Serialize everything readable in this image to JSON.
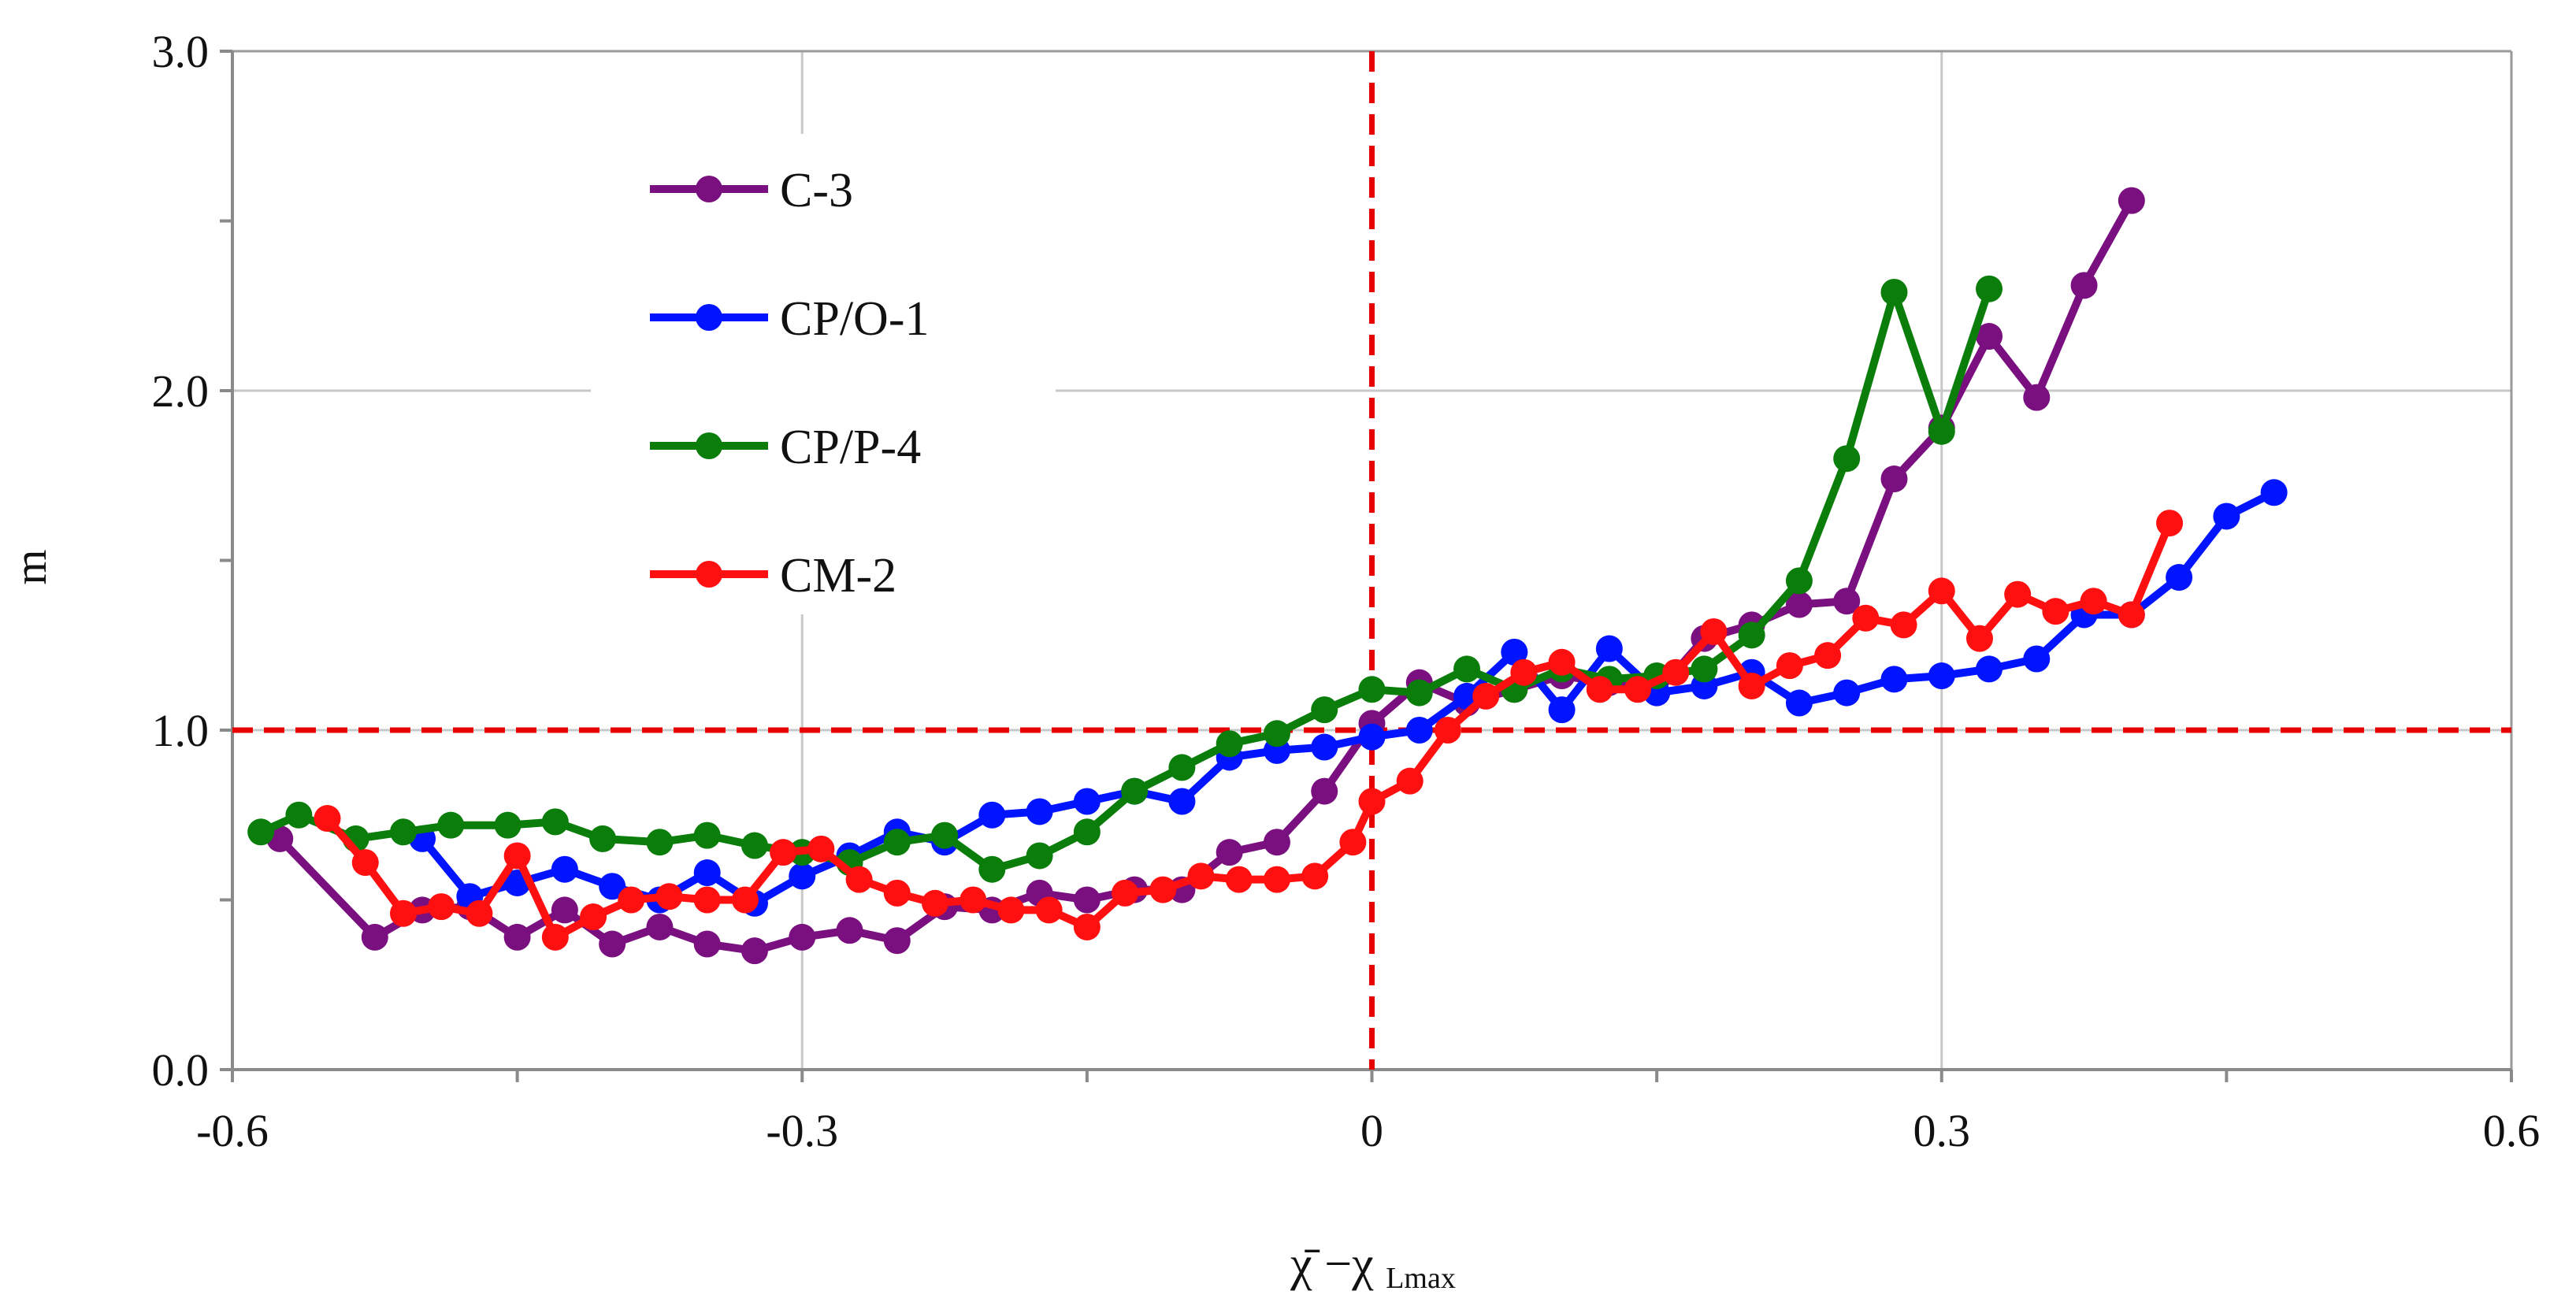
{
  "chart_data": {
    "type": "line",
    "title": "",
    "xlabel": {
      "main": "χ̄ −χ",
      "subscript": "Lmax"
    },
    "ylabel": "m",
    "xlim": [
      -0.6,
      0.6
    ],
    "ylim": [
      0.0,
      3.0
    ],
    "xticks": [
      -0.6,
      -0.45,
      -0.3,
      -0.15,
      0.0,
      0.15,
      0.3,
      0.45,
      0.6
    ],
    "xtick_labels": [
      "-0.6",
      "",
      "-0.3",
      "",
      "0",
      "",
      "0.3",
      "",
      "0.6"
    ],
    "yticks": [
      0.0,
      0.5,
      1.0,
      1.5,
      2.0,
      2.5,
      3.0
    ],
    "ytick_labels": [
      "0.0",
      "",
      "1.0",
      "",
      "2.0",
      "",
      "3.0"
    ],
    "grid_x": [
      -0.3,
      0.3
    ],
    "grid_y": [
      1.0,
      2.0
    ],
    "reference_lines": {
      "vertical_x": 0.0,
      "horizontal_y": 1.0,
      "color": "#e60000"
    },
    "legend_position": "upper-left",
    "series": [
      {
        "name": "C-3",
        "color": "#7a0f7f",
        "x": [
          -0.575,
          -0.525,
          -0.5,
          -0.475,
          -0.45,
          -0.425,
          -0.4,
          -0.375,
          -0.35,
          -0.325,
          -0.3,
          -0.275,
          -0.25,
          -0.225,
          -0.2,
          -0.175,
          -0.15,
          -0.125,
          -0.1,
          -0.075,
          -0.05,
          -0.025,
          0.0,
          0.025,
          0.05,
          0.075,
          0.1,
          0.125,
          0.15,
          0.175,
          0.2,
          0.225,
          0.25,
          0.275,
          0.3,
          0.325,
          0.35,
          0.375,
          0.4
        ],
        "y": [
          0.68,
          0.39,
          0.47,
          0.48,
          0.39,
          0.47,
          0.37,
          0.42,
          0.37,
          0.35,
          0.39,
          0.41,
          0.38,
          0.48,
          0.47,
          0.52,
          0.5,
          0.53,
          0.53,
          0.64,
          0.67,
          0.82,
          1.02,
          1.14,
          1.08,
          1.12,
          1.16,
          1.14,
          1.11,
          1.27,
          1.31,
          1.37,
          1.38,
          1.74,
          1.89,
          2.16,
          1.98,
          2.31,
          2.56
        ]
      },
      {
        "name": "CP/O-1",
        "color": "#0014ff",
        "x": [
          -0.5,
          -0.475,
          -0.45,
          -0.425,
          -0.4,
          -0.375,
          -0.35,
          -0.325,
          -0.3,
          -0.275,
          -0.25,
          -0.225,
          -0.2,
          -0.175,
          -0.15,
          -0.125,
          -0.1,
          -0.075,
          -0.05,
          -0.025,
          0.0,
          0.025,
          0.05,
          0.075,
          0.1,
          0.125,
          0.15,
          0.175,
          0.2,
          0.225,
          0.25,
          0.275,
          0.3,
          0.325,
          0.35,
          0.375,
          0.4,
          0.425,
          0.45,
          0.475
        ],
        "y": [
          0.68,
          0.51,
          0.55,
          0.59,
          0.54,
          0.5,
          0.58,
          0.49,
          0.57,
          0.63,
          0.7,
          0.67,
          0.75,
          0.76,
          0.79,
          0.82,
          0.79,
          0.92,
          0.94,
          0.95,
          0.98,
          1.0,
          1.1,
          1.23,
          1.06,
          1.24,
          1.11,
          1.13,
          1.17,
          1.08,
          1.11,
          1.15,
          1.16,
          1.18,
          1.21,
          1.34,
          1.34,
          1.45,
          1.63,
          1.7
        ]
      },
      {
        "name": "CP/P-4",
        "color": "#0a7d0a",
        "x": [
          -0.585,
          -0.565,
          -0.535,
          -0.51,
          -0.485,
          -0.455,
          -0.43,
          -0.405,
          -0.375,
          -0.35,
          -0.325,
          -0.3,
          -0.275,
          -0.25,
          -0.225,
          -0.2,
          -0.175,
          -0.15,
          -0.125,
          -0.1,
          -0.075,
          -0.05,
          -0.025,
          0.0,
          0.025,
          0.05,
          0.075,
          0.1,
          0.125,
          0.15,
          0.175,
          0.2,
          0.225,
          0.25,
          0.275,
          0.3,
          0.325
        ],
        "y": [
          0.7,
          0.75,
          0.68,
          0.7,
          0.72,
          0.72,
          0.73,
          0.68,
          0.67,
          0.69,
          0.66,
          0.64,
          0.61,
          0.67,
          0.69,
          0.59,
          0.63,
          0.7,
          0.82,
          0.89,
          0.96,
          0.99,
          1.06,
          1.12,
          1.11,
          1.18,
          1.12,
          1.18,
          1.15,
          1.16,
          1.18,
          1.28,
          1.44,
          1.8,
          2.29,
          1.88,
          2.3
        ]
      },
      {
        "name": "CM-2",
        "color": "#ff1010",
        "x": [
          -0.55,
          -0.53,
          -0.51,
          -0.49,
          -0.47,
          -0.45,
          -0.43,
          -0.41,
          -0.39,
          -0.37,
          -0.35,
          -0.33,
          -0.31,
          -0.29,
          -0.27,
          -0.25,
          -0.23,
          -0.21,
          -0.19,
          -0.17,
          -0.15,
          -0.13,
          -0.11,
          -0.09,
          -0.07,
          -0.05,
          -0.03,
          -0.01,
          0.0,
          0.02,
          0.04,
          0.06,
          0.08,
          0.1,
          0.12,
          0.14,
          0.16,
          0.18,
          0.2,
          0.22,
          0.24,
          0.26,
          0.28,
          0.3,
          0.32,
          0.34,
          0.36,
          0.38,
          0.4,
          0.42
        ],
        "y": [
          0.74,
          0.61,
          0.46,
          0.48,
          0.46,
          0.63,
          0.39,
          0.45,
          0.5,
          0.51,
          0.5,
          0.5,
          0.64,
          0.65,
          0.56,
          0.52,
          0.49,
          0.5,
          0.47,
          0.47,
          0.42,
          0.52,
          0.53,
          0.57,
          0.56,
          0.56,
          0.57,
          0.67,
          0.79,
          0.85,
          1.0,
          1.1,
          1.17,
          1.2,
          1.12,
          1.12,
          1.17,
          1.29,
          1.13,
          1.19,
          1.22,
          1.33,
          1.31,
          1.41,
          1.27,
          1.4,
          1.35,
          1.38,
          1.34,
          1.61
        ]
      }
    ]
  }
}
